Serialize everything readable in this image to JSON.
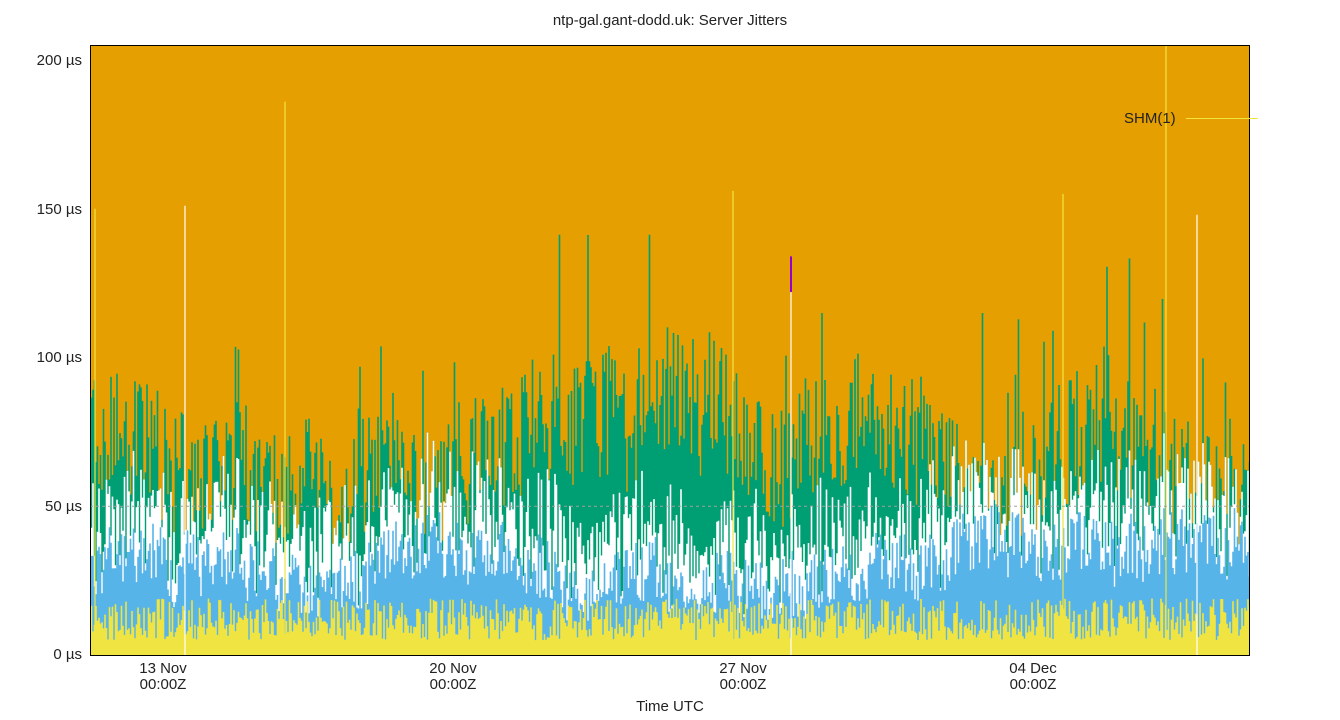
{
  "title": "ntp-gal.gant-dodd.uk: Server Jitters",
  "legend": {
    "label": "SHM(1)",
    "color": "#f0e442"
  },
  "y_axis": {
    "ticks": [
      {
        "label": "200 µs",
        "value": 200
      },
      {
        "label": "150 µs",
        "value": 150
      },
      {
        "label": "100 µs",
        "value": 100
      },
      {
        "label": "50 µs",
        "value": 50
      },
      {
        "label": "0 µs",
        "value": 0
      }
    ]
  },
  "x_axis": {
    "title": "Time UTC",
    "ticks": [
      {
        "date": "13 Nov",
        "time": "00:00Z"
      },
      {
        "date": "20 Nov",
        "time": "00:00Z"
      },
      {
        "date": "27 Nov",
        "time": "00:00Z"
      },
      {
        "date": "04 Dec",
        "time": "00:00Z"
      }
    ]
  },
  "colors": {
    "background_fill": "#e69f00",
    "green_layer": "#009e73",
    "white_layer": "#ffffff",
    "blue_layer": "#56b4e9",
    "yellow_layer": "#f0e442",
    "purple_marker": "#9400d3",
    "gridline": "#a0a0a0"
  },
  "chart_data": {
    "type": "area",
    "title": "ntp-gal.gant-dodd.uk: Server Jitters",
    "xlabel": "Time UTC",
    "ylabel": "",
    "ylim": [
      0,
      205
    ],
    "yticks": [
      0,
      50,
      100,
      150,
      200
    ],
    "y_unit": "µs",
    "x_range": [
      "11 Nov 2025 ~06:00Z",
      "09 Dec ~04:00Z"
    ],
    "categories": [
      "13 Nov 00:00Z",
      "20 Nov 00:00Z",
      "27 Nov 00:00Z",
      "04 Dec 00:00Z"
    ],
    "legend": [
      "SHM(1)"
    ],
    "legend_position": "upper right",
    "grid": "dashed horizontal line at 50 µs",
    "series": [
      {
        "name": "SHM(1) jitter (yellow, lowest band)",
        "typical_range": [
          5,
          25
        ],
        "mean": 15
      },
      {
        "name": "blue band",
        "typical_range": [
          15,
          50
        ],
        "mean": 30
      },
      {
        "name": "white band",
        "typical_range": [
          25,
          80
        ],
        "mean": 45
      },
      {
        "name": "green band (peaks)",
        "typical_range": [
          45,
          130
        ],
        "mean": 75,
        "max": 145
      }
    ],
    "notable_spikes": [
      {
        "x": "~15 Nov",
        "value": 186
      },
      {
        "x": "~06 Dec",
        "value": 205
      },
      {
        "x": "~28 Nov",
        "value": 156
      },
      {
        "x": "~04 Dec",
        "value": 155
      }
    ]
  }
}
